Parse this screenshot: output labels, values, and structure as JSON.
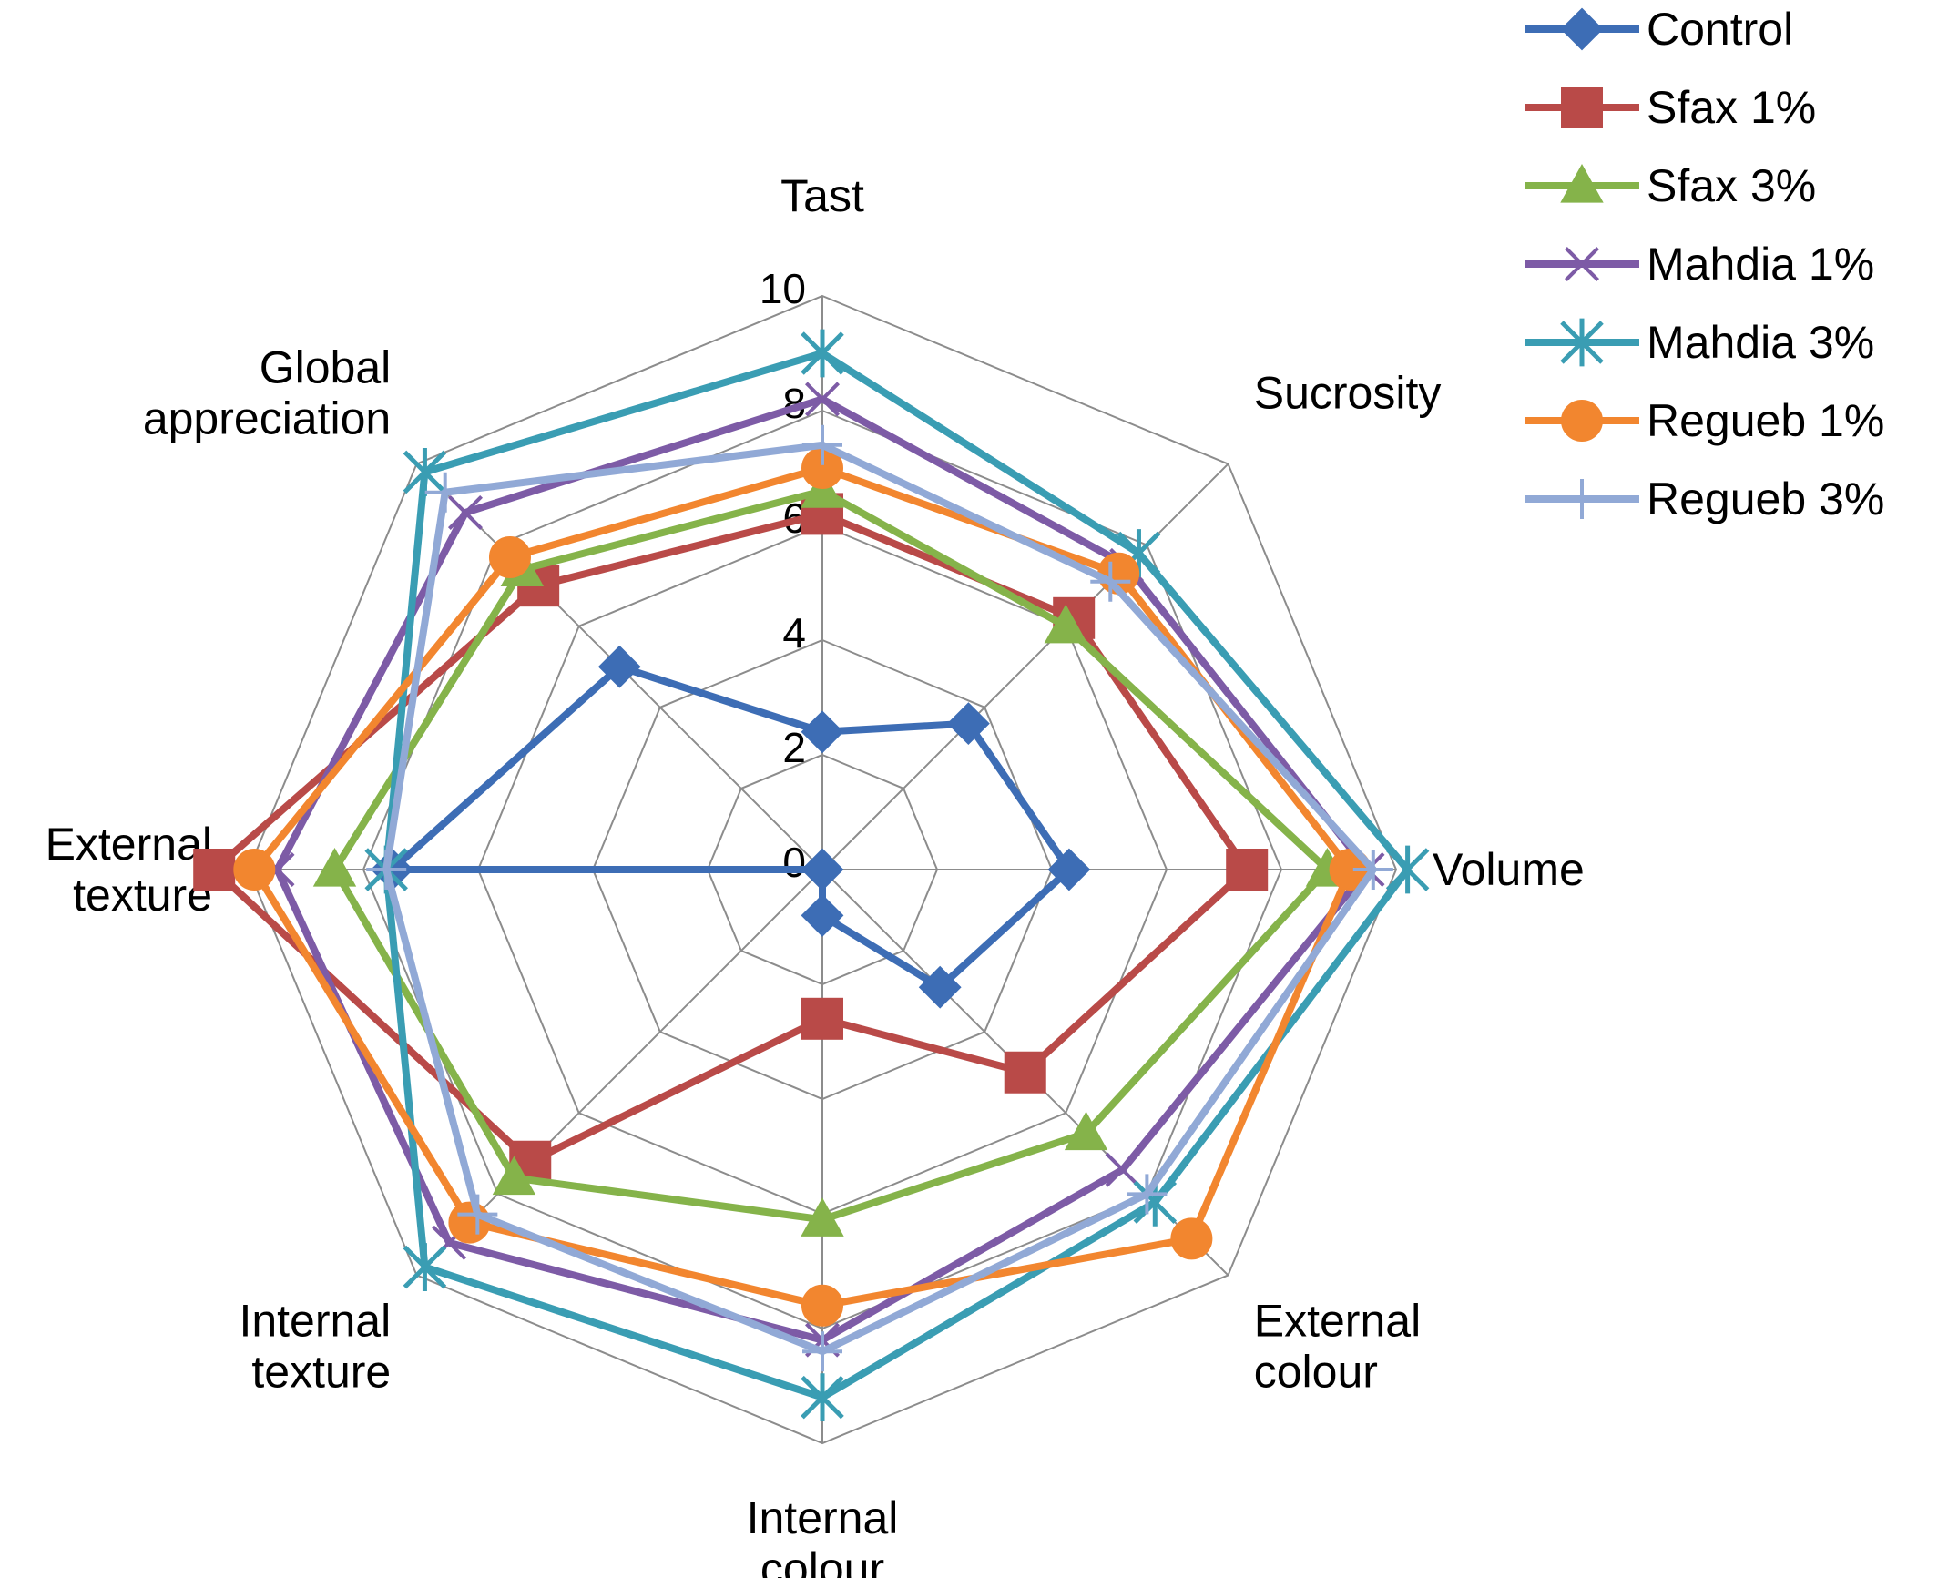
{
  "chart_data": {
    "type": "radar",
    "title": "",
    "axes": [
      {
        "name": "tast",
        "label_lines": [
          "Tast"
        ]
      },
      {
        "name": "sucrosity",
        "label_lines": [
          "Sucrosity"
        ]
      },
      {
        "name": "volume",
        "label_lines": [
          "Volume"
        ]
      },
      {
        "name": "external-colour",
        "label_lines": [
          "External",
          "colour"
        ]
      },
      {
        "name": "internal-colour",
        "label_lines": [
          "Internal",
          "colour"
        ]
      },
      {
        "name": "internal-texture",
        "label_lines": [
          "Internal",
          "texture"
        ]
      },
      {
        "name": "external-texture",
        "label_lines": [
          "External",
          "texture"
        ]
      },
      {
        "name": "global-appreciation",
        "label_lines": [
          "Global",
          "appreciation"
        ]
      }
    ],
    "rlim": [
      0,
      10
    ],
    "ticks": [
      0,
      2,
      4,
      6,
      8,
      10
    ],
    "tick_labels": [
      "0",
      "2",
      "4",
      "6",
      "8",
      "10"
    ],
    "grid": true,
    "legend_position": "top-right",
    "series": [
      {
        "name": "Control",
        "color": "#3d6db5",
        "marker": "diamond",
        "values": [
          2.4,
          3.6,
          4.3,
          2.9,
          0.8,
          0.0,
          7.5,
          5.0
        ]
      },
      {
        "name": "Sfax 1%",
        "color": "#b94a48",
        "marker": "square",
        "values": [
          6.2,
          6.2,
          7.4,
          5.0,
          2.6,
          7.2,
          10.6,
          7.0
        ]
      },
      {
        "name": "Sfax 3%",
        "color": "#85b34a",
        "marker": "triangle",
        "values": [
          6.6,
          6.0,
          8.8,
          6.5,
          6.1,
          7.6,
          8.5,
          7.4
        ]
      },
      {
        "name": "Mahdia 1%",
        "color": "#7d5ba6",
        "marker": "x",
        "values": [
          8.2,
          7.5,
          9.5,
          7.4,
          8.2,
          9.2,
          9.5,
          8.8
        ]
      },
      {
        "name": "Mahdia 3%",
        "color": "#3a9db3",
        "marker": "star",
        "values": [
          9.0,
          7.8,
          10.2,
          8.2,
          9.2,
          9.8,
          7.6,
          9.8
        ]
      },
      {
        "name": "Regueb 1%",
        "color": "#f2862f",
        "marker": "circle",
        "values": [
          7.0,
          7.3,
          9.2,
          9.1,
          7.6,
          8.7,
          9.9,
          7.7
        ]
      },
      {
        "name": "Regueb 3%",
        "color": "#91a9d6",
        "marker": "plus",
        "values": [
          7.4,
          7.1,
          9.6,
          8.0,
          8.4,
          8.5,
          7.6,
          9.3
        ]
      }
    ]
  }
}
